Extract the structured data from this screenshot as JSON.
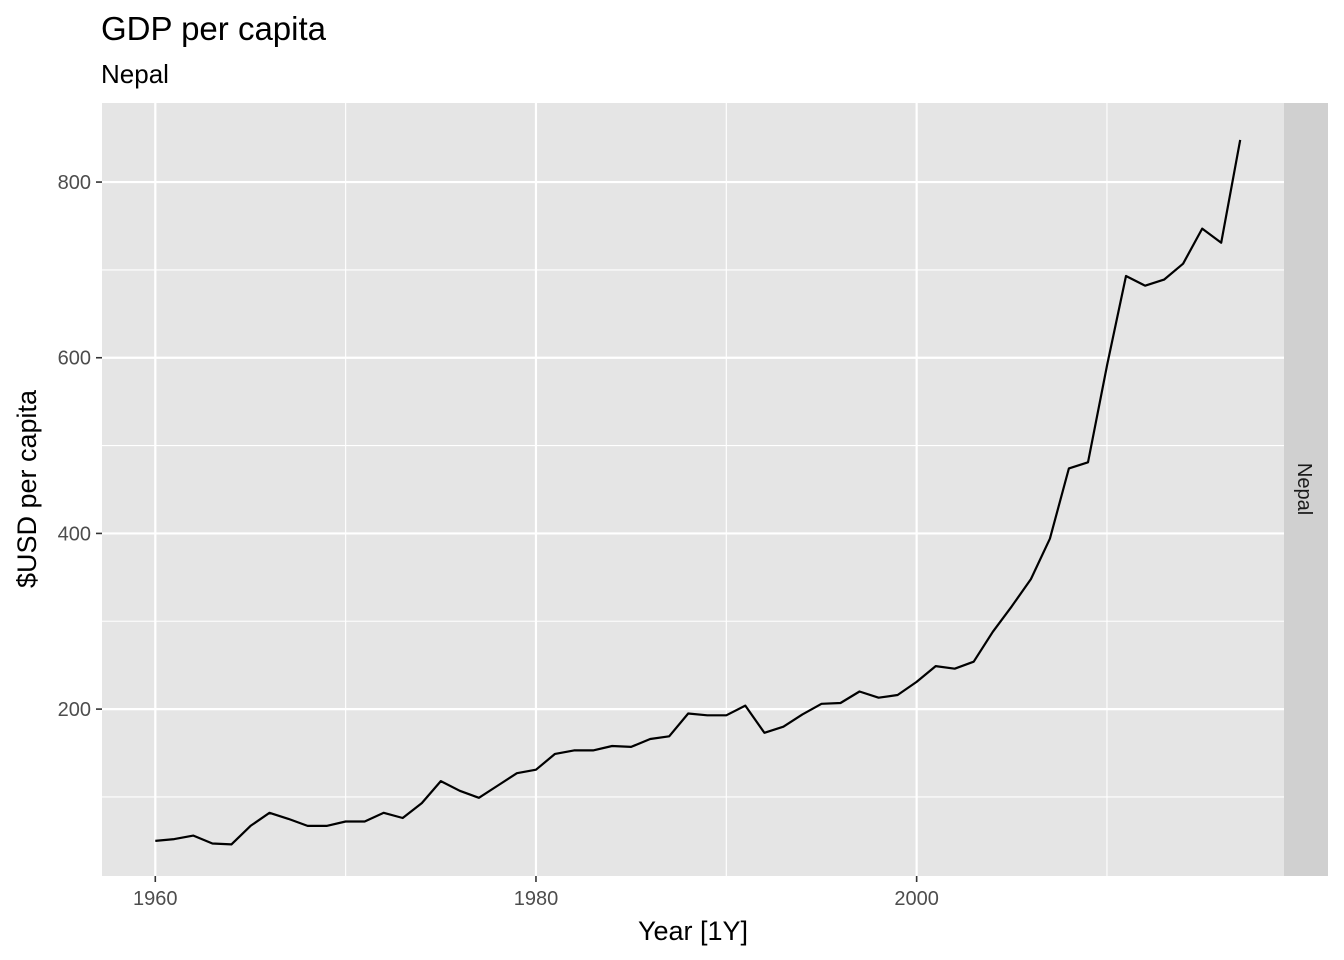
{
  "chart_data": {
    "type": "line",
    "title": "GDP per capita",
    "subtitle": "Nepal",
    "xlabel": "Year [1Y]",
    "ylabel": "$USD per capita",
    "facet_label": "Nepal",
    "xlim": [
      1957.2,
      2019.3
    ],
    "ylim": [
      10,
      890
    ],
    "x_ticks": [
      1960,
      1980,
      2000
    ],
    "x_tick_labels": [
      "1960",
      "1980",
      "2000"
    ],
    "x_minor_ticks": [
      1970,
      1990,
      2010
    ],
    "y_ticks": [
      200,
      400,
      600,
      800
    ],
    "y_tick_labels": [
      "200",
      "400",
      "600",
      "800"
    ],
    "y_minor_ticks": [
      100,
      300,
      500,
      700
    ],
    "grid": true,
    "colors": {
      "panel": "#e5e5e5",
      "grid": "#ffffff",
      "line": "#000000",
      "strip": "#d0d0d0"
    },
    "series": [
      {
        "x": [
          1960,
          1961,
          1962,
          1963,
          1964,
          1965,
          1966,
          1967,
          1968,
          1969,
          1970,
          1971,
          1972,
          1973,
          1974,
          1975,
          1976,
          1977,
          1978,
          1979,
          1980,
          1981,
          1982,
          1983,
          1984,
          1985,
          1986,
          1987,
          1988,
          1989,
          1990,
          1991,
          1992,
          1993,
          1994,
          1995,
          1996,
          1997,
          1998,
          1999,
          2000,
          2001,
          2002,
          2003,
          2004,
          2005,
          2006,
          2007,
          2008,
          2009,
          2010,
          2011,
          2012,
          2013,
          2014,
          2015,
          2016,
          2017
        ],
        "values": [
          50,
          52,
          56,
          47,
          46,
          67,
          82,
          75,
          67,
          67,
          72,
          72,
          82,
          76,
          93,
          118,
          107,
          99,
          113,
          127,
          131,
          149,
          153,
          153,
          158,
          157,
          166,
          169,
          195,
          193,
          193,
          204,
          173,
          180,
          194,
          206,
          207,
          220,
          213,
          216,
          231,
          249,
          246,
          254,
          288,
          317,
          348,
          394,
          474,
          481,
          591,
          693,
          682,
          689,
          707,
          747,
          731,
          848
        ]
      }
    ]
  }
}
